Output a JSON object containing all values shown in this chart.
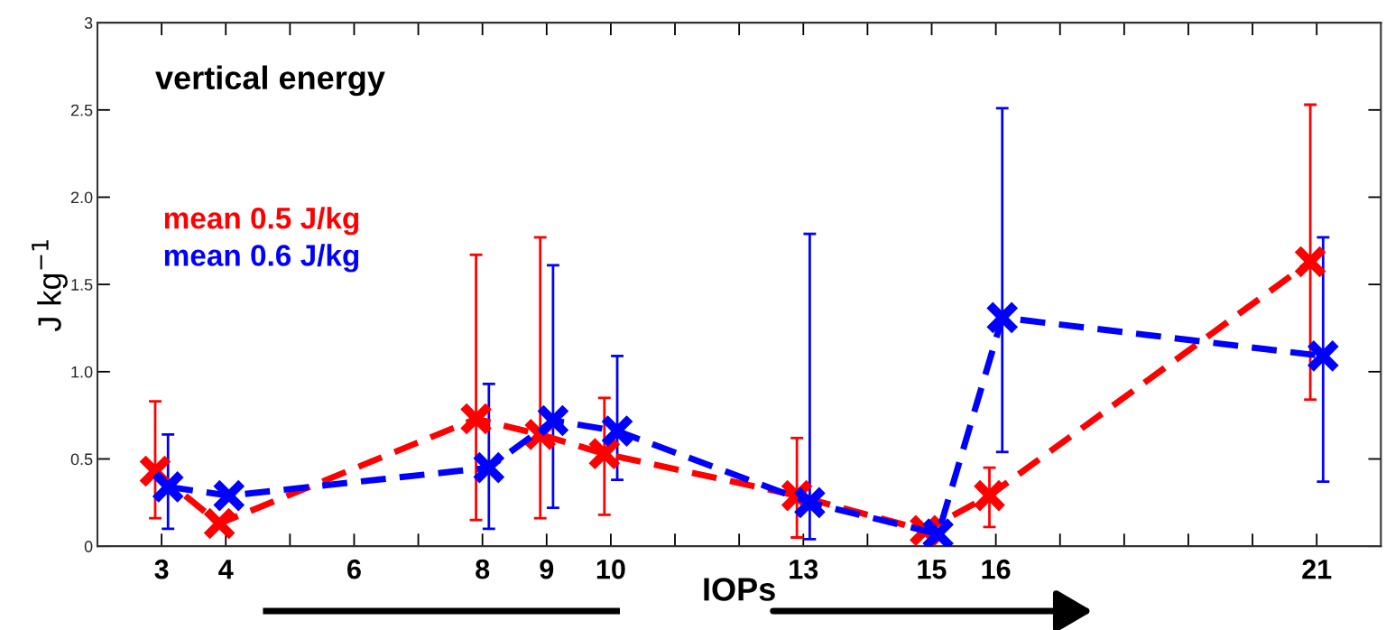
{
  "chart_data": {
    "type": "line",
    "title": "vertical energy",
    "xlabel": "IOPs",
    "ylabel": "J kg$^{−1}$",
    "xlim": [
      2,
      22
    ],
    "ylim": [
      0,
      3
    ],
    "xticks": [
      3,
      4,
      {
        "value": 5,
        "label": null
      },
      6,
      {
        "value": 7,
        "label": null
      },
      8,
      9,
      10,
      {
        "value": 11,
        "label": null
      },
      {
        "value": 12,
        "label": null
      },
      13,
      {
        "value": 14,
        "label": null
      },
      15,
      16,
      {
        "value": 17,
        "label": null
      },
      {
        "value": 18,
        "label": null
      },
      {
        "value": 19,
        "label": null
      },
      {
        "value": 20,
        "label": null
      },
      21
    ],
    "yticks": [
      0,
      0.5,
      {
        "value": 1,
        "label": "1.0"
      },
      1.5,
      {
        "value": 2,
        "label": "2.0"
      },
      2.5,
      3
    ],
    "series": [
      {
        "name": "mean 0.5 J/kg",
        "color": "#ff0000",
        "x": [
          2.9,
          3.9,
          7.9,
          8.9,
          9.9,
          12.9,
          14.9,
          15.9,
          20.9
        ],
        "values": [
          0.43,
          0.13,
          0.73,
          0.64,
          0.53,
          0.29,
          0.09,
          0.29,
          1.63
        ],
        "errors": [
          [
            0.16,
            0.83
          ],
          null,
          [
            0.15,
            1.67
          ],
          [
            0.16,
            1.77
          ],
          [
            0.18,
            0.85
          ],
          [
            0.05,
            0.62
          ],
          null,
          [
            0.11,
            0.45
          ],
          [
            0.84,
            2.53
          ]
        ]
      },
      {
        "name": "mean 0.6 J/kg",
        "color": "#0000ff",
        "x": [
          3.1,
          4.05,
          8.1,
          9.1,
          10.1,
          13.1,
          15.1,
          16.1,
          21.1
        ],
        "values": [
          0.34,
          0.29,
          0.45,
          0.72,
          0.66,
          0.25,
          0.07,
          1.31,
          1.09
        ],
        "errors": [
          [
            0.1,
            0.64
          ],
          null,
          [
            0.1,
            0.93
          ],
          [
            0.22,
            1.61
          ],
          [
            0.38,
            1.09
          ],
          [
            0.04,
            1.79
          ],
          null,
          [
            0.54,
            2.51
          ],
          [
            0.37,
            1.77
          ]
        ]
      }
    ],
    "marker": "cross",
    "line_style": "dashed",
    "legend": "top left",
    "grid": false
  }
}
